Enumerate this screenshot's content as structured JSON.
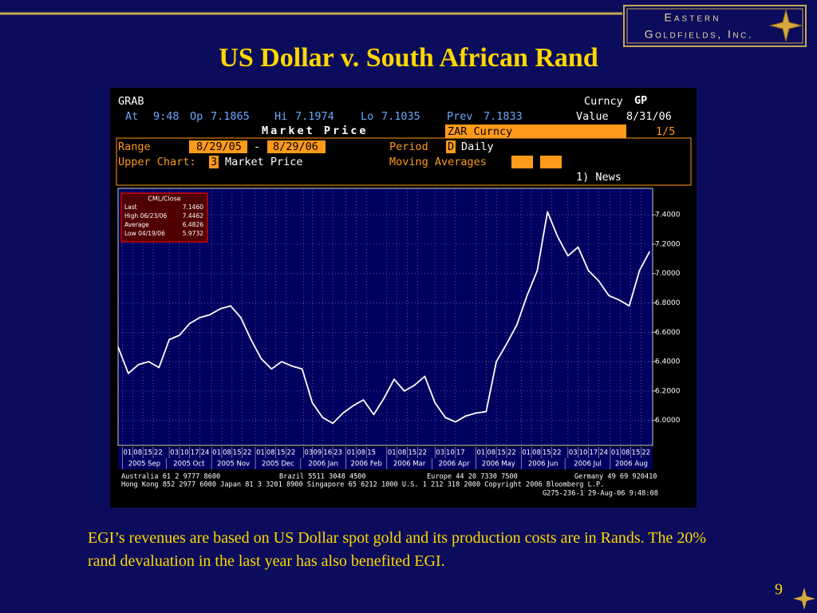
{
  "header": {
    "logo_line1": "Eastern",
    "logo_line2": "Goldfields, Inc.",
    "title": "US Dollar v. South African Rand"
  },
  "terminal": {
    "source": "GRAB",
    "security_type": "Curncy",
    "function": "GP",
    "at_label": "At",
    "time": "9:48",
    "open_label": "Op",
    "open": "7.1865",
    "high_label": "Hi",
    "high": "7.1974",
    "low_label": "Lo",
    "low": "7.1035",
    "prev_label": "Prev",
    "prev": "7.1833",
    "value_label": "Value",
    "value_date": "8/31/06",
    "screen_title": "Market Price",
    "security": "ZAR Curncy",
    "page": "1/5",
    "range_label": "Range",
    "range_start": "8/29/05",
    "range_dash": "-",
    "range_end": "8/29/06",
    "period_label": "Period",
    "period_code": "D",
    "period": "Daily",
    "upper_chart_label": "Upper Chart:",
    "upper_chart_code": "3",
    "upper_chart": "Market Price",
    "moving_averages_label": "Moving Averages",
    "news": "1) News"
  },
  "chart_data": {
    "type": "line",
    "color": "#ffffff",
    "legend": {
      "title": "CML/Close",
      "rows": [
        [
          "Last",
          "7.1460"
        ],
        [
          "High 06/23/06",
          "7.4462"
        ],
        [
          "Average",
          "6.4826"
        ],
        [
          "Low 04/19/06",
          "5.9732"
        ]
      ]
    },
    "x": [
      "2005-08-29",
      "2005-09-05",
      "2005-09-12",
      "2005-09-19",
      "2005-09-26",
      "2005-10-03",
      "2005-10-10",
      "2005-10-17",
      "2005-10-24",
      "2005-10-31",
      "2005-11-07",
      "2005-11-14",
      "2005-11-21",
      "2005-11-28",
      "2005-12-05",
      "2005-12-12",
      "2005-12-19",
      "2005-12-26",
      "2006-01-02",
      "2006-01-09",
      "2006-01-16",
      "2006-01-23",
      "2006-01-30",
      "2006-02-06",
      "2006-02-13",
      "2006-02-20",
      "2006-02-27",
      "2006-03-06",
      "2006-03-13",
      "2006-03-20",
      "2006-03-27",
      "2006-04-03",
      "2006-04-10",
      "2006-04-17",
      "2006-04-24",
      "2006-05-01",
      "2006-05-08",
      "2006-05-15",
      "2006-05-22",
      "2006-05-29",
      "2006-06-05",
      "2006-06-12",
      "2006-06-19",
      "2006-06-26",
      "2006-07-03",
      "2006-07-10",
      "2006-07-17",
      "2006-07-24",
      "2006-07-31",
      "2006-08-07",
      "2006-08-14",
      "2006-08-21",
      "2006-08-28"
    ],
    "values": [
      6.5,
      6.32,
      6.38,
      6.4,
      6.36,
      6.55,
      6.58,
      6.66,
      6.7,
      6.72,
      6.76,
      6.78,
      6.7,
      6.55,
      6.42,
      6.35,
      6.4,
      6.37,
      6.35,
      6.12,
      6.02,
      5.98,
      6.05,
      6.1,
      6.14,
      6.04,
      6.15,
      6.28,
      6.2,
      6.24,
      6.3,
      6.12,
      6.02,
      5.99,
      6.03,
      6.05,
      6.06,
      6.4,
      6.52,
      6.65,
      6.85,
      7.02,
      7.42,
      7.25,
      7.12,
      7.18,
      7.02,
      6.95,
      6.85,
      6.82,
      6.78,
      7.02,
      7.15
    ],
    "xlim": [
      "2005-08-29",
      "2006-08-30"
    ],
    "xticks": [
      {
        "value": "2005-09-01",
        "label": "01"
      },
      {
        "value": "2005-09-08",
        "label": "08"
      },
      {
        "value": "2005-09-15",
        "label": "15"
      },
      {
        "value": "2005-09-22",
        "label": "22"
      },
      {
        "value": "2005-10-03",
        "label": "03"
      },
      {
        "value": "2005-10-10",
        "label": "10"
      },
      {
        "value": "2005-10-17",
        "label": "17"
      },
      {
        "value": "2005-10-24",
        "label": "24"
      },
      {
        "value": "2005-11-01",
        "label": "01"
      },
      {
        "value": "2005-11-08",
        "label": "08"
      },
      {
        "value": "2005-11-15",
        "label": "15"
      },
      {
        "value": "2005-11-22",
        "label": "22"
      },
      {
        "value": "2005-12-01",
        "label": "01"
      },
      {
        "value": "2005-12-08",
        "label": "08"
      },
      {
        "value": "2005-12-15",
        "label": "15"
      },
      {
        "value": "2005-12-22",
        "label": "22"
      },
      {
        "value": "2006-01-03",
        "label": "03"
      },
      {
        "value": "2006-01-09",
        "label": "09"
      },
      {
        "value": "2006-01-16",
        "label": "16"
      },
      {
        "value": "2006-01-23",
        "label": "23"
      },
      {
        "value": "2006-02-01",
        "label": "01"
      },
      {
        "value": "2006-02-08",
        "label": "08"
      },
      {
        "value": "2006-02-15",
        "label": "15"
      },
      {
        "value": "2006-03-01",
        "label": "01"
      },
      {
        "value": "2006-03-08",
        "label": "08"
      },
      {
        "value": "2006-03-15",
        "label": "15"
      },
      {
        "value": "2006-03-22",
        "label": "22"
      },
      {
        "value": "2006-04-03",
        "label": "03"
      },
      {
        "value": "2006-04-10",
        "label": "10"
      },
      {
        "value": "2006-04-17",
        "label": "17"
      },
      {
        "value": "2006-05-01",
        "label": "01"
      },
      {
        "value": "2006-05-08",
        "label": "08"
      },
      {
        "value": "2006-05-15",
        "label": "15"
      },
      {
        "value": "2006-05-22",
        "label": "22"
      },
      {
        "value": "2006-06-01",
        "label": "01"
      },
      {
        "value": "2006-06-08",
        "label": "08"
      },
      {
        "value": "2006-06-15",
        "label": "15"
      },
      {
        "value": "2006-06-22",
        "label": "22"
      },
      {
        "value": "2006-07-03",
        "label": "03"
      },
      {
        "value": "2006-07-10",
        "label": "10"
      },
      {
        "value": "2006-07-17",
        "label": "17"
      },
      {
        "value": "2006-07-24",
        "label": "24"
      },
      {
        "value": "2006-08-01",
        "label": "01"
      },
      {
        "value": "2006-08-08",
        "label": "08"
      },
      {
        "value": "2006-08-15",
        "label": "15"
      },
      {
        "value": "2006-08-22",
        "label": "22"
      }
    ],
    "month_labels": [
      {
        "value": "2005-09-01",
        "label": "2005 Sep"
      },
      {
        "value": "2005-10-01",
        "label": "2005 Oct"
      },
      {
        "value": "2005-11-01",
        "label": "2005 Nov"
      },
      {
        "value": "2005-12-01",
        "label": "2005 Dec"
      },
      {
        "value": "2006-01-01",
        "label": "2006 Jan"
      },
      {
        "value": "2006-02-01",
        "label": "2006 Feb"
      },
      {
        "value": "2006-03-01",
        "label": "2006 Mar"
      },
      {
        "value": "2006-04-01",
        "label": "2006 Apr"
      },
      {
        "value": "2006-05-01",
        "label": "2006 May"
      },
      {
        "value": "2006-06-01",
        "label": "2006 Jun"
      },
      {
        "value": "2006-07-01",
        "label": "2006 Jul"
      },
      {
        "value": "2006-08-01",
        "label": "2006 Aug"
      }
    ],
    "ylim": [
      5.83,
      7.58
    ],
    "yticks": [
      {
        "value": 6.0,
        "label": "6.0000"
      },
      {
        "value": 6.2,
        "label": "6.2000"
      },
      {
        "value": 6.4,
        "label": "6.4000"
      },
      {
        "value": 6.6,
        "label": "6.6000"
      },
      {
        "value": 6.8,
        "label": "6.8000"
      },
      {
        "value": 7.0,
        "label": "7.0000"
      },
      {
        "value": 7.2,
        "label": "7.2000"
      },
      {
        "value": 7.4,
        "label": "7.4000"
      }
    ],
    "grid": true
  },
  "terminal_footer": [
    "Australia 61 2 9777 8600",
    "Brazil 5511 3048 4500",
    "Europe 44 20 7330 7500",
    "Germany 49 69 920410",
    "Hong Kong 852 2977 6000 Japan 81 3 3201 8900 Singapore 65 6212 1000 U.S. 1 212 318 2000 Copyright 2006 Bloomberg L.P.",
    "G275-236-1 29-Aug-06  9:48:08"
  ],
  "caption": "EGI’s revenues are based on US Dollar spot gold and its production costs are in Rands.  The 20% rand devaluation in the last year has also benefited EGI.",
  "page_number": "9"
}
